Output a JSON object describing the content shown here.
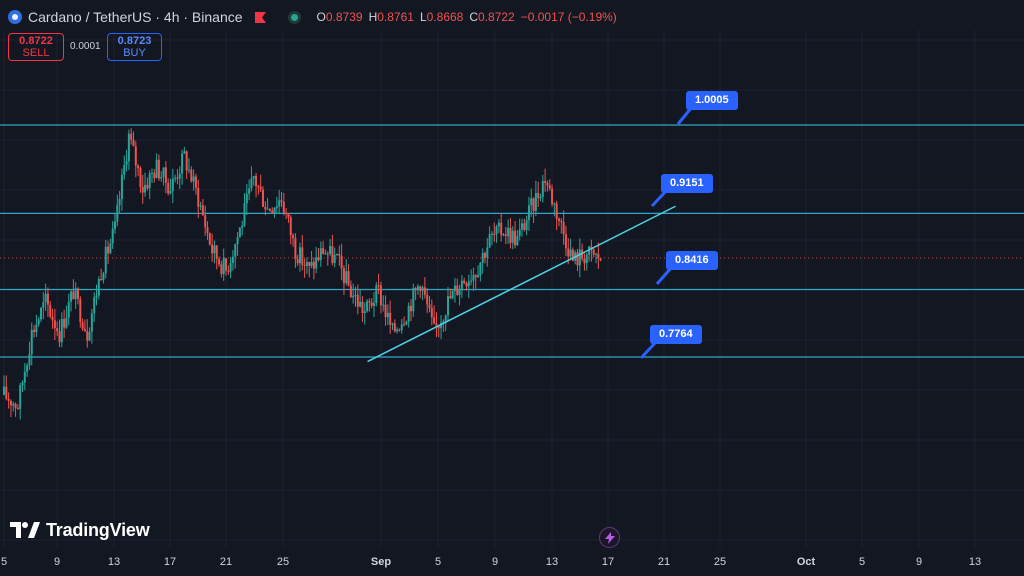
{
  "header": {
    "symbol": "Cardano / TetherUS · 4h · Binance",
    "ohlc": [
      {
        "label": "O",
        "value": "0.8739"
      },
      {
        "label": "H",
        "value": "0.8761"
      },
      {
        "label": "L",
        "value": "0.8668"
      },
      {
        "label": "C",
        "value": "0.8722"
      },
      {
        "label": "",
        "value": "−0.0017 (−0.19%)"
      }
    ],
    "down_color": "#ef5350"
  },
  "trade": {
    "sell_price": "0.8722",
    "sell_label": "SELL",
    "spread": "0.0001",
    "buy_price": "0.8723",
    "buy_label": "BUY"
  },
  "brand": {
    "name": "TradingView"
  },
  "colors": {
    "background": "#131722",
    "up": "#26a69a",
    "down": "#ef5350",
    "level_line": "#2fa7c7",
    "trend_line": "#4dd0e1",
    "callout": "#2962ff"
  },
  "icons": [
    "coin-logo-icon",
    "flag-icon",
    "eye-icon",
    "bolt-icon",
    "tradingview-logo-icon"
  ],
  "chart_data": {
    "type": "candlestick",
    "timeframe": "4h",
    "x_ticks": [
      "5",
      "9",
      "13",
      "17",
      "21",
      "25",
      "Sep",
      "5",
      "9",
      "13",
      "17",
      "21",
      "25",
      "Oct",
      "5",
      "9",
      "13"
    ],
    "y_range": [
      0.68,
      1.06
    ],
    "current_price": 0.8722,
    "horizontal_levels": [
      1.0005,
      0.9151,
      0.8416,
      0.7764
    ],
    "level_labels": [
      "1.0005",
      "0.9151",
      "0.8416",
      "0.7764"
    ],
    "trendline": {
      "from": {
        "day": 31.2,
        "price": 0.772
      },
      "to": {
        "day": 53.4,
        "price": 0.922
      }
    },
    "price_path": [
      [
        5,
        0.74
      ],
      [
        6,
        0.73
      ],
      [
        7,
        0.8
      ],
      [
        8,
        0.83
      ],
      [
        9,
        0.8
      ],
      [
        10,
        0.84
      ],
      [
        11,
        0.8
      ],
      [
        12,
        0.86
      ],
      [
        13,
        0.9
      ],
      [
        14,
        0.99
      ],
      [
        15,
        0.94
      ],
      [
        16,
        0.96
      ],
      [
        17,
        0.94
      ],
      [
        18,
        0.97
      ],
      [
        19,
        0.93
      ],
      [
        20,
        0.88
      ],
      [
        21,
        0.86
      ],
      [
        22,
        0.9
      ],
      [
        23,
        0.95
      ],
      [
        24,
        0.92
      ],
      [
        25,
        0.93
      ],
      [
        26,
        0.88
      ],
      [
        27,
        0.86
      ],
      [
        28,
        0.88
      ],
      [
        29,
        0.87
      ],
      [
        30,
        0.84
      ],
      [
        31,
        0.82
      ],
      [
        32,
        0.84
      ],
      [
        33,
        0.8
      ],
      [
        34,
        0.82
      ],
      [
        35,
        0.85
      ],
      [
        36,
        0.8
      ],
      [
        37,
        0.83
      ],
      [
        38,
        0.85
      ],
      [
        39,
        0.86
      ],
      [
        40,
        0.89
      ],
      [
        41,
        0.9
      ],
      [
        42,
        0.89
      ],
      [
        43,
        0.92
      ],
      [
        44,
        0.95
      ],
      [
        45,
        0.91
      ],
      [
        46,
        0.87
      ],
      [
        47,
        0.876
      ],
      [
        48,
        0.872
      ]
    ]
  }
}
